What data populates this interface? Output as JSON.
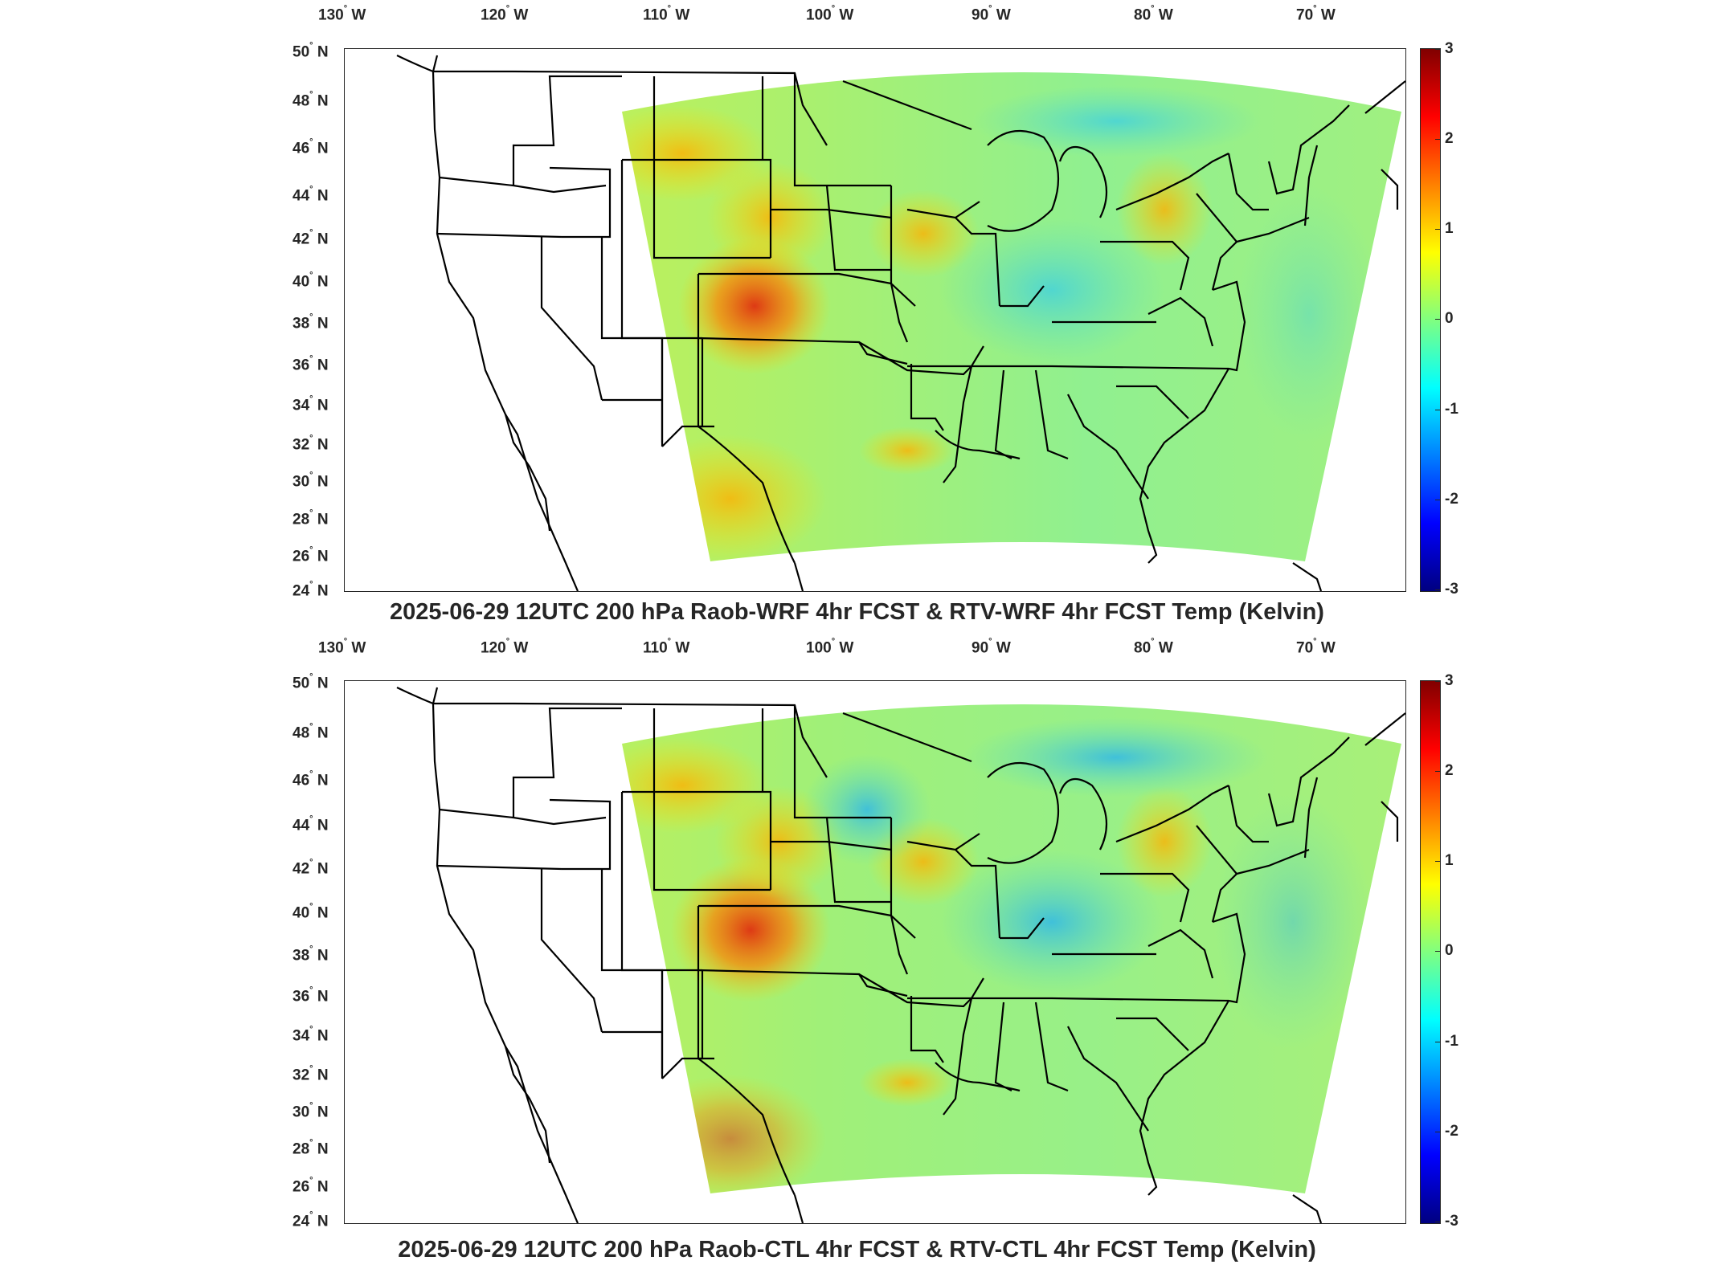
{
  "colors": {
    "frame": "#262626",
    "state_lines": "#000000"
  },
  "longitude_labels": [
    "130° W",
    "120° W",
    "110° W",
    "100° W",
    "90° W",
    "80° W",
    "70° W"
  ],
  "latitude_labels": [
    "50° N",
    "48° N",
    "46° N",
    "44° N",
    "42° N",
    "40° N",
    "38° N",
    "36° N",
    "34° N",
    "32° N",
    "30° N",
    "28° N",
    "26° N",
    "24° N"
  ],
  "colorbar": {
    "ticks": [
      "3",
      "2",
      "1",
      "0",
      "-1",
      "-2",
      "-3"
    ],
    "range": [
      -3,
      3
    ],
    "colormap": "jet"
  },
  "panels": [
    {
      "title": "2025-06-29 12UTC 200 hPa Raob-WRF 4hr FCST & RTV-WRF 4hr FCST Temp (Kelvin)"
    },
    {
      "title": "2025-06-29 12UTC 200 hPa Raob-CTL 4hr FCST & RTV-CTL 4hr FCST Temp (Kelvin)"
    }
  ]
}
